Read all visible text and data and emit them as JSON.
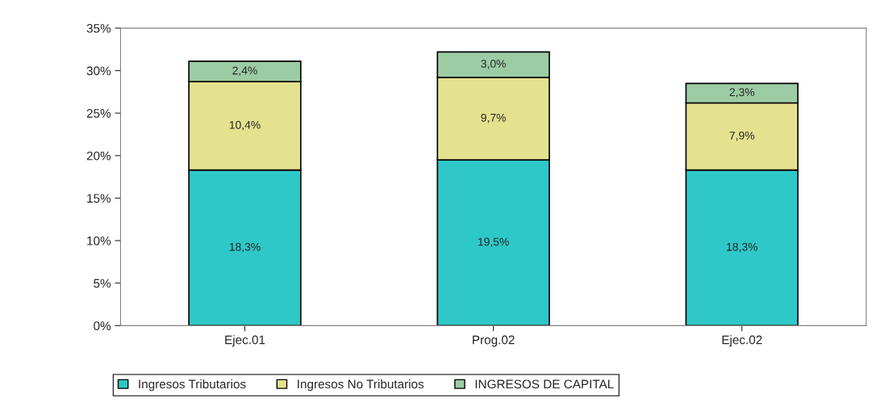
{
  "chart_data": {
    "type": "bar",
    "stacked": true,
    "categories": [
      "Ejec.01",
      "Prog.02",
      "Ejec.02"
    ],
    "series": [
      {
        "name": "Ingresos Tributarios",
        "color": "#2ec8c8",
        "values": [
          18.3,
          19.5,
          18.3
        ],
        "value_labels": [
          "18,3%",
          "19,5%",
          "18,3%"
        ]
      },
      {
        "name": "Ingresos No Tributarios",
        "color": "#e4e28e",
        "values": [
          10.4,
          9.7,
          7.9
        ],
        "value_labels": [
          "10,4%",
          "9,7%",
          "7,9%"
        ]
      },
      {
        "name": "INGRESOS DE CAPITAL",
        "color": "#9ccca4",
        "values": [
          2.4,
          3.0,
          2.3
        ],
        "value_labels": [
          "2,4%",
          "3,0%",
          "2,3%"
        ]
      }
    ],
    "ylim": [
      0,
      35
    ],
    "yticks": [
      {
        "value": 0,
        "label": "0%"
      },
      {
        "value": 5,
        "label": "5%"
      },
      {
        "value": 10,
        "label": "10%"
      },
      {
        "value": 15,
        "label": "15%"
      },
      {
        "value": 20,
        "label": "20%"
      },
      {
        "value": 25,
        "label": "25%"
      },
      {
        "value": 30,
        "label": "30%"
      },
      {
        "value": 35,
        "label": "35%"
      }
    ],
    "grid": false,
    "legend": "bottom"
  }
}
